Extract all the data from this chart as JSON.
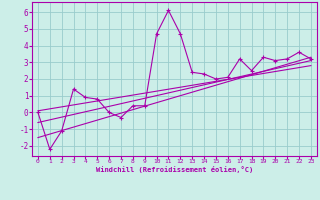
{
  "xlabel": "Windchill (Refroidissement éolien,°C)",
  "background_color": "#cceee8",
  "line_color": "#aa00aa",
  "grid_color": "#99cccc",
  "xlim": [
    -0.5,
    23.5
  ],
  "ylim": [
    -2.6,
    6.6
  ],
  "yticks": [
    -2,
    -1,
    0,
    1,
    2,
    3,
    4,
    5,
    6
  ],
  "xticks": [
    0,
    1,
    2,
    3,
    4,
    5,
    6,
    7,
    8,
    9,
    10,
    11,
    12,
    13,
    14,
    15,
    16,
    17,
    18,
    19,
    20,
    21,
    22,
    23
  ],
  "scatter_x": [
    0,
    1,
    2,
    3,
    4,
    5,
    6,
    7,
    8,
    9,
    10,
    11,
    12,
    13,
    14,
    15,
    16,
    17,
    18,
    19,
    20,
    21,
    22,
    23
  ],
  "scatter_y": [
    0.0,
    -2.2,
    -1.1,
    1.4,
    0.9,
    0.8,
    0.0,
    -0.3,
    0.4,
    0.4,
    4.7,
    6.1,
    4.7,
    2.4,
    2.3,
    2.0,
    2.1,
    3.2,
    2.5,
    3.3,
    3.1,
    3.2,
    3.6,
    3.2
  ],
  "reg_line1": {
    "x": [
      0,
      23
    ],
    "y": [
      -1.5,
      3.3
    ]
  },
  "reg_line2": {
    "x": [
      0,
      23
    ],
    "y": [
      -0.6,
      3.1
    ]
  },
  "reg_line3": {
    "x": [
      0,
      23
    ],
    "y": [
      0.1,
      2.8
    ]
  }
}
